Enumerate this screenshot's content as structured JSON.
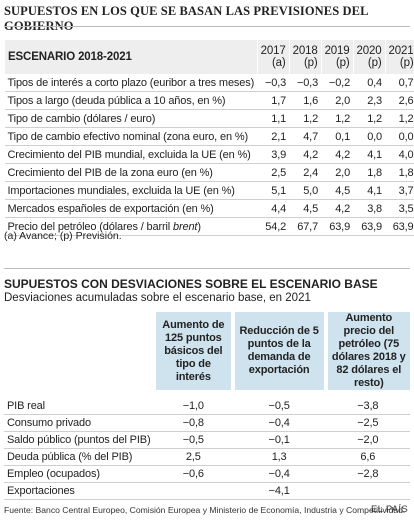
{
  "header": {
    "title": "SUPUESTOS EN LOS QUE SE BASAN LAS PREVISIONES DEL GOBIERNO"
  },
  "scenario": {
    "heading": "ESCENARIO 2018-2021",
    "columns": [
      [
        "2017",
        "(a)"
      ],
      [
        "2018",
        "(p)"
      ],
      [
        "2019",
        "(p)"
      ],
      [
        "2020",
        "(p)"
      ],
      [
        "2021",
        "(p)"
      ]
    ],
    "rows": [
      {
        "label": [
          "Tipos de interés a corto plazo (euribor a tres meses)"
        ],
        "values": [
          "−0,3",
          "−0,3",
          "−0,2",
          "0,4",
          "0,7"
        ]
      },
      {
        "label": [
          "Tipos a largo (deuda pública a 10 años, en %)"
        ],
        "values": [
          "1,7",
          "1,6",
          "2,0",
          "2,3",
          "2,6"
        ]
      },
      {
        "label": [
          "Tipo de cambio (dólares / euro)"
        ],
        "values": [
          "1,1",
          "1,2",
          "1,2",
          "1,2",
          "1,2"
        ]
      },
      {
        "label": [
          "Tipo de cambio efectivo nominal (zona euro, en %)"
        ],
        "values": [
          "2,1",
          "4,7",
          "0,1",
          "0,0",
          "0,0"
        ]
      },
      {
        "label": [
          "Crecimiento del PIB mundial, excluida la UE (en %)"
        ],
        "values": [
          "3,9",
          "4,2",
          "4,2",
          "4,1",
          "4,0"
        ]
      },
      {
        "label": [
          "Crecimiento del PIB de la zona euro (en %)"
        ],
        "values": [
          "2,5",
          "2,4",
          "2,0",
          "1,8",
          "1,8"
        ]
      },
      {
        "label": [
          "Importaciones mundiales, excluida la UE (en %)"
        ],
        "values": [
          "5,1",
          "5,0",
          "4,5",
          "4,1",
          "3,7"
        ]
      },
      {
        "label": [
          "Mercados españoles de exportación (en %)"
        ],
        "values": [
          "4,4",
          "4,5",
          "4,2",
          "3,8",
          "3,5"
        ]
      },
      {
        "label": [
          "Precio del petróleo (dólares / barril ",
          "brent",
          ")"
        ],
        "values": [
          "54,2",
          "67,7",
          "63,9",
          "63,9",
          "63,9"
        ]
      }
    ],
    "note": "(a) Avance; (p) Previsión."
  },
  "deviations": {
    "title": "SUPUESTOS CON DESVIACIONES SOBRE EL ESCENARIO BASE",
    "subtitle": "Desviaciones acumuladas sobre el escenario base, en 2021",
    "columns": [
      "Aumento de 125 puntos básicos del tipo de interés",
      "Reducción de 5 puntos de la demanda de exportación",
      "Aumento precio del petróleo (75 dólares 2018 y 82 dólares el resto)"
    ],
    "rows": [
      {
        "label": "PIB real",
        "values": [
          "−1,0",
          "−0,5",
          "−3,8"
        ]
      },
      {
        "label": "Consumo privado",
        "values": [
          "−0,8",
          "−0,4",
          "−2,5"
        ]
      },
      {
        "label": "Saldo público (puntos del PIB)",
        "values": [
          "−0,5",
          "−0,1",
          "−2,0"
        ]
      },
      {
        "label": "Deuda pública (% del PIB)",
        "values": [
          "2,5",
          "1,3",
          "6,6"
        ]
      },
      {
        "label": "Empleo (ocupados)",
        "values": [
          "−0,6",
          "−0,4",
          "−2,8"
        ]
      },
      {
        "label": "Exportaciones",
        "values": [
          null,
          "−4,1",
          null
        ]
      }
    ]
  },
  "footer": {
    "source": "Fuente: Banco Central Europeo, Comisión Europea y Ministerio de Economía, Industria y Competitividad.",
    "brand": "EL PAÍS"
  }
}
